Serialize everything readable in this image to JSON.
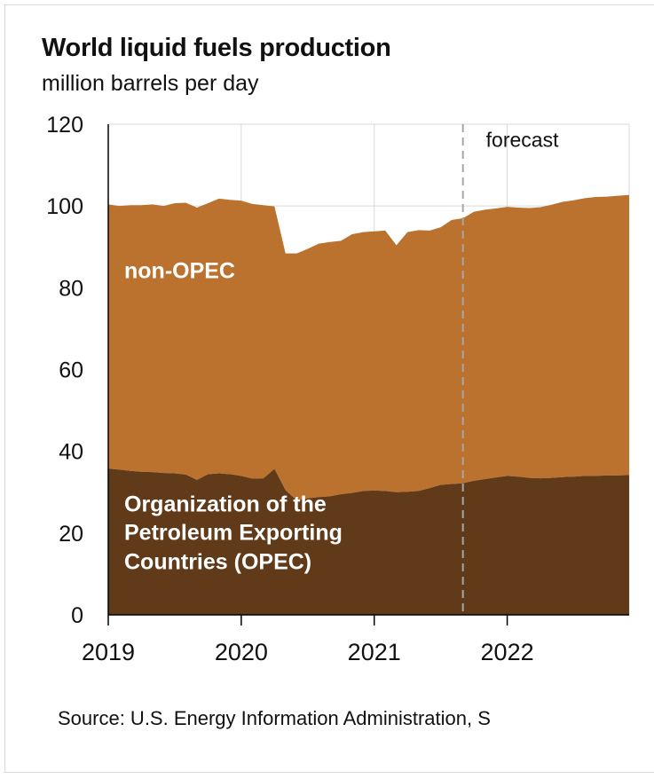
{
  "title": "World liquid fuels production",
  "subtitle": "million barrels per day",
  "source": "Source: U.S. Energy Information Administration, S",
  "colors": {
    "opec": "#603a19",
    "non_opec": "#bc722f",
    "forecast_line": "#a6a6a6",
    "axis": "#000000",
    "grid": "#d9d9d9",
    "label_text": "#ffffff"
  },
  "chart_data": {
    "type": "area",
    "stacked": true,
    "title": "World liquid fuels production",
    "ylabel": "million barrels per day",
    "xlabel": "",
    "ylim": [
      0,
      120
    ],
    "xlim": [
      2019.0,
      2022.917
    ],
    "y_ticks": [
      0,
      20,
      40,
      60,
      80,
      100,
      120
    ],
    "x_ticks": [
      {
        "value": 2019,
        "label": "2019"
      },
      {
        "value": 2020,
        "label": "2020"
      },
      {
        "value": 2021,
        "label": "2021"
      },
      {
        "value": 2022,
        "label": "2022"
      }
    ],
    "forecast_start": 2021.667,
    "forecast_label": "forecast",
    "x": [
      2019.0,
      2019.083,
      2019.167,
      2019.25,
      2019.333,
      2019.417,
      2019.5,
      2019.583,
      2019.667,
      2019.75,
      2019.833,
      2019.917,
      2020.0,
      2020.083,
      2020.167,
      2020.25,
      2020.333,
      2020.417,
      2020.5,
      2020.583,
      2020.667,
      2020.75,
      2020.833,
      2020.917,
      2021.0,
      2021.083,
      2021.167,
      2021.25,
      2021.333,
      2021.417,
      2021.5,
      2021.583,
      2021.667,
      2021.75,
      2021.833,
      2021.917,
      2022.0,
      2022.083,
      2022.167,
      2022.25,
      2022.333,
      2022.417,
      2022.5,
      2022.583,
      2022.667,
      2022.75,
      2022.833,
      2022.917
    ],
    "series": [
      {
        "name": "Organization of the Petroleum Exporting Countries (OPEC)",
        "label_lines": [
          "Organization of the",
          "Petroleum Exporting",
          "Countries (OPEC)"
        ],
        "values": [
          35.8,
          35.5,
          35.2,
          35.0,
          34.9,
          34.7,
          34.6,
          34.3,
          33.0,
          34.4,
          34.6,
          34.4,
          34.0,
          33.3,
          33.4,
          35.7,
          30.5,
          28.0,
          28.5,
          28.8,
          29.0,
          29.5,
          29.8,
          30.3,
          30.4,
          30.3,
          30.0,
          30.1,
          30.3,
          31.0,
          31.8,
          32.0,
          32.2,
          32.8,
          33.2,
          33.6,
          34.0,
          33.8,
          33.5,
          33.4,
          33.5,
          33.7,
          33.8,
          34.0,
          34.0,
          34.1,
          34.1,
          34.2
        ]
      },
      {
        "name": "non-OPEC",
        "label_lines": [
          "non-OPEC"
        ],
        "values": [
          64.6,
          64.5,
          65.0,
          65.2,
          65.5,
          65.3,
          66.1,
          66.5,
          66.6,
          66.3,
          67.2,
          67.1,
          67.3,
          67.2,
          66.8,
          64.2,
          57.9,
          60.4,
          61.0,
          62.0,
          62.2,
          62.0,
          63.3,
          63.3,
          63.4,
          63.7,
          60.4,
          63.5,
          63.8,
          63.0,
          63.0,
          64.6,
          64.8,
          65.8,
          65.9,
          65.8,
          65.8,
          65.8,
          66.0,
          66.3,
          66.8,
          67.3,
          67.6,
          67.9,
          68.2,
          68.2,
          68.4,
          68.5
        ]
      }
    ]
  }
}
